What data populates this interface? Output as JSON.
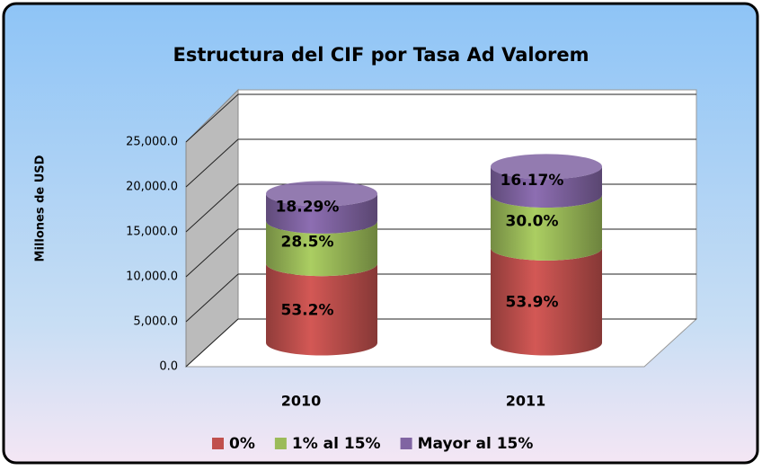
{
  "chart_data": {
    "type": "bar3d_stacked",
    "title": "Estructura del CIF por Tasa Ad Valorem",
    "y_label": "Millones de USD",
    "categories": [
      "2010",
      "2011"
    ],
    "series": [
      {
        "name": "0%",
        "color": "#c0504d",
        "values": [
          8831,
          10565
        ],
        "value_labels": [
          "53.2%",
          "53.9%"
        ]
      },
      {
        "name": "1% al 15%",
        "color": "#9bbb59",
        "values": [
          4731,
          5880
        ],
        "value_labels": [
          "28.5%",
          "30.0%"
        ]
      },
      {
        "name": "Mayor al 15%",
        "color": "#8064a2",
        "values": [
          3036,
          3172
        ],
        "value_labels": [
          "18.29%",
          "16.17%"
        ]
      }
    ],
    "ylim": [
      0,
      25000
    ],
    "yticks": [
      {
        "value": 0,
        "label": "0.0"
      },
      {
        "value": 5000,
        "label": "5,000.0"
      },
      {
        "value": 10000,
        "label": "10,000.0"
      },
      {
        "value": 15000,
        "label": "15,000.0"
      },
      {
        "value": 20000,
        "label": "20,000.0"
      },
      {
        "value": 25000,
        "label": "25,000.0"
      }
    ],
    "grid": true,
    "legend": "bottom"
  }
}
